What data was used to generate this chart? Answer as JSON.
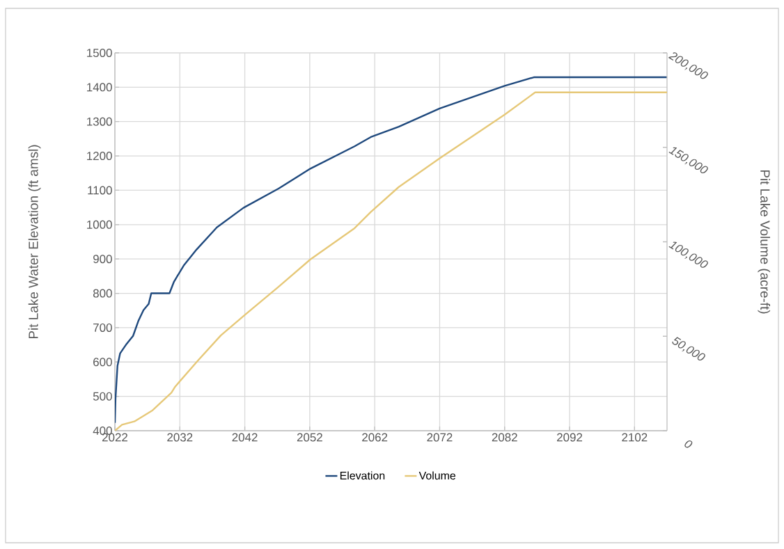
{
  "chart_data": {
    "type": "line",
    "xlabel": null,
    "ylabel": "Pit Lake Water Elevation (ft amsl)",
    "y2label": "Pit Lake Volume (acre-ft)",
    "xlim": [
      2022,
      2107
    ],
    "xticks": [
      2022,
      2032,
      2042,
      2052,
      2062,
      2072,
      2082,
      2092,
      2102
    ],
    "ylim": [
      400,
      1500
    ],
    "yticks": [
      400,
      500,
      600,
      700,
      800,
      900,
      1000,
      1100,
      1200,
      1300,
      1400,
      1500
    ],
    "y2lim": [
      0,
      200000
    ],
    "y2ticks": [
      {
        "value": 0,
        "label": "0"
      },
      {
        "value": 50000,
        "label": "50,000"
      },
      {
        "value": 100000,
        "label": "100,000"
      },
      {
        "value": 150000,
        "label": "150,000"
      },
      {
        "value": 200000,
        "label": "200,000"
      }
    ],
    "grid": true,
    "legend": "bottom",
    "marker": "none",
    "line_style": "solid",
    "series": [
      {
        "name": "Elevation",
        "color": "#1f497d",
        "x": [
          2022,
          2022.1,
          2022.4,
          2022.8,
          2023.7,
          2024.8,
          2025.6,
          2026.4,
          2027.2,
          2027.6,
          2030.4,
          2031.1,
          2032.6,
          2034.6,
          2037.7,
          2041.8,
          2047.2,
          2052.1,
          2058.9,
          2061.4,
          2065.7,
          2072,
          2082,
          2086.5,
          2107
        ],
        "values": [
          423,
          495,
          589,
          625,
          650,
          676,
          719,
          751,
          769,
          800,
          800,
          834,
          881,
          928,
          992,
          1049,
          1105,
          1163,
          1228,
          1255,
          1285,
          1338,
          1404,
          1429,
          1429
        ]
      },
      {
        "name": "Volume",
        "color": "#e6c878",
        "axis": "y2",
        "x": [
          2022,
          2023.1,
          2025,
          2027.8,
          2030.7,
          2031.3,
          2034.8,
          2038.3,
          2042,
          2047.2,
          2052.1,
          2058.9,
          2061.4,
          2065.7,
          2072,
          2082,
          2086.7,
          2107
        ],
        "values": [
          0,
          3200,
          4900,
          10800,
          20100,
          23400,
          37200,
          50400,
          61300,
          76200,
          90700,
          107200,
          115800,
          129000,
          144200,
          167300,
          179100,
          179100
        ]
      }
    ]
  }
}
